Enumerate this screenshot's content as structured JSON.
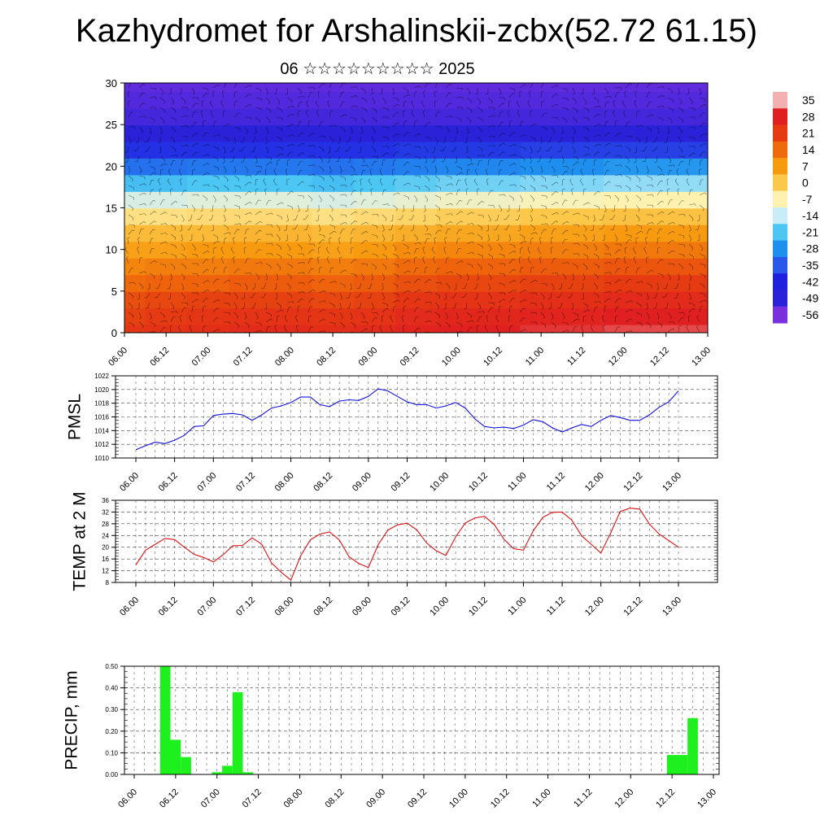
{
  "title": "Kazhydromet for Arshalinskii-zcbx(52.72 61.15)",
  "subtitle": "06 ☆☆☆☆☆☆☆☆☆ 2025",
  "x_ticks": [
    "06.00",
    "06.12",
    "07.00",
    "07.12",
    "08.00",
    "08.12",
    "09.00",
    "09.12",
    "10.00",
    "10.12",
    "11.00",
    "11.12",
    "12.00",
    "12.12",
    "13.00"
  ],
  "colorbar": {
    "labels": [
      "35",
      "28",
      "21",
      "14",
      "7",
      "0",
      "-7",
      "-14",
      "-21",
      "-28",
      "-35",
      "-42",
      "-49",
      "-56"
    ],
    "colors": [
      "#f2b0b0",
      "#e02020",
      "#e53a12",
      "#ef6a0a",
      "#f79a10",
      "#fcc84a",
      "#fff2b0",
      "#c9ecf9",
      "#4cc6f2",
      "#1f8fef",
      "#2a58ea",
      "#2020e0",
      "#2a22d8",
      "#7a30e0"
    ]
  },
  "chart_data": [
    {
      "type": "heatmap",
      "title": "",
      "ylim": [
        0,
        30
      ],
      "y_ticks": [
        0,
        5,
        10,
        15,
        20,
        25,
        30
      ],
      "x_categories": [
        "06.00",
        "06.12",
        "07.00",
        "07.12",
        "08.00",
        "08.12",
        "09.00",
        "09.12",
        "10.00",
        "10.12",
        "11.00",
        "11.12",
        "12.00",
        "12.12",
        "13.00"
      ],
      "y_levels": [
        0,
        2,
        4,
        6,
        8,
        10,
        12,
        14,
        16,
        18,
        20,
        22,
        24,
        26,
        28,
        30
      ],
      "values": [
        [
          22,
          23,
          24,
          25,
          25,
          24,
          25,
          27,
          28,
          28,
          29,
          29,
          30,
          30,
          30
        ],
        [
          20,
          21,
          22,
          23,
          23,
          22,
          23,
          25,
          26,
          26,
          27,
          27,
          28,
          28,
          28
        ],
        [
          18,
          19,
          20,
          20,
          20,
          19,
          20,
          22,
          23,
          23,
          24,
          24,
          25,
          25,
          25
        ],
        [
          14,
          15,
          15,
          16,
          16,
          15,
          16,
          18,
          19,
          19,
          20,
          20,
          21,
          21,
          21
        ],
        [
          10,
          11,
          11,
          12,
          12,
          11,
          12,
          14,
          15,
          15,
          16,
          16,
          17,
          17,
          17
        ],
        [
          6,
          6,
          7,
          7,
          7,
          6,
          7,
          9,
          10,
          10,
          11,
          11,
          12,
          12,
          12
        ],
        [
          2,
          2,
          2,
          3,
          3,
          2,
          3,
          4,
          5,
          5,
          6,
          6,
          7,
          7,
          7
        ],
        [
          -4,
          -4,
          -3,
          -3,
          -3,
          -4,
          -3,
          -2,
          -1,
          -1,
          0,
          0,
          1,
          1,
          1
        ],
        [
          -12,
          -12,
          -11,
          -11,
          -11,
          -12,
          -11,
          -10,
          -9,
          -9,
          -8,
          -8,
          -7,
          -7,
          -7
        ],
        [
          -22,
          -22,
          -21,
          -21,
          -21,
          -22,
          -21,
          -20,
          -19,
          -19,
          -18,
          -18,
          -17,
          -17,
          -17
        ],
        [
          -32,
          -32,
          -31,
          -31,
          -31,
          -32,
          -31,
          -30,
          -29,
          -29,
          -28,
          -28,
          -27,
          -27,
          -27
        ],
        [
          -40,
          -40,
          -40,
          -40,
          -40,
          -40,
          -40,
          -39,
          -39,
          -39,
          -38,
          -38,
          -38,
          -38,
          -38
        ],
        [
          -50,
          -50,
          -50,
          -50,
          -50,
          -50,
          -50,
          -50,
          -50,
          -50,
          -50,
          -50,
          -50,
          -50,
          -50
        ],
        [
          -52,
          -52,
          -52,
          -52,
          -52,
          -52,
          -52,
          -52,
          -52,
          -52,
          -52,
          -52,
          -52,
          -52,
          -52
        ],
        [
          -53,
          -53,
          -53,
          -53,
          -53,
          -53,
          -53,
          -53,
          -53,
          -53,
          -53,
          -53,
          -53,
          -53,
          -53
        ],
        [
          -54,
          -54,
          -54,
          -54,
          -54,
          -54,
          -54,
          -54,
          -54,
          -54,
          -54,
          -54,
          -54,
          -54,
          -54
        ]
      ]
    },
    {
      "type": "line",
      "ylabel": "PMSL",
      "ylim": [
        1010,
        1022
      ],
      "y_ticks": [
        1010,
        1012,
        1014,
        1016,
        1018,
        1020,
        1022
      ],
      "series": [
        {
          "color": "#1010e0",
          "values": [
            1011.2,
            1011.8,
            1012.3,
            1012.1,
            1012.6,
            1013.3,
            1014.6,
            1014.7,
            1016.2,
            1016.4,
            1016.5,
            1016.3,
            1015.5,
            1016.3,
            1017.3,
            1017.6,
            1018.1,
            1018.9,
            1018.9,
            1017.8,
            1017.5,
            1018.3,
            1018.5,
            1018.4,
            1019.0,
            1020.1,
            1019.8,
            1019.0,
            1018.2,
            1017.8,
            1017.8,
            1017.3,
            1017.6,
            1018.1,
            1017.3,
            1015.7,
            1014.6,
            1014.4,
            1014.5,
            1014.3,
            1014.8,
            1015.6,
            1015.3,
            1014.4,
            1013.8,
            1014.4,
            1014.9,
            1014.6,
            1015.5,
            1016.2,
            1015.9,
            1015.5,
            1015.5,
            1016.3,
            1017.4,
            1018.2,
            1019.8
          ]
        }
      ]
    },
    {
      "type": "line",
      "ylabel": "TEMP at 2 M",
      "ylim": [
        8,
        36
      ],
      "y_ticks": [
        8,
        12,
        16,
        20,
        24,
        28,
        32,
        36
      ],
      "series": [
        {
          "color": "#e01010",
          "values": [
            14,
            19,
            21,
            23,
            22.6,
            20,
            17.6,
            16.5,
            15,
            17.4,
            20.5,
            20.6,
            23.2,
            21,
            14.6,
            11.5,
            8.8,
            17,
            22.5,
            24.5,
            25.2,
            22.5,
            16.8,
            14.5,
            13.1,
            20.8,
            25.8,
            27.6,
            28.2,
            25.9,
            21.5,
            18.8,
            17.2,
            23.5,
            28.3,
            30,
            30.5,
            27.7,
            22.7,
            19.5,
            19,
            25.5,
            30.2,
            31.9,
            32,
            29.2,
            23.9,
            21,
            18,
            24.8,
            32.2,
            33.3,
            33,
            27.9,
            24.5,
            22.3,
            20
          ]
        }
      ]
    },
    {
      "type": "bar",
      "ylabel": "PRECIP, mm",
      "ylim": [
        0,
        0.5
      ],
      "y_ticks": [
        "0.00",
        "0.10",
        "0.20",
        "0.30",
        "0.40",
        "0.50"
      ],
      "color": "#1ef01e",
      "values": [
        0,
        0,
        0,
        0.5,
        0.16,
        0.08,
        0,
        0,
        0.01,
        0.04,
        0.38,
        0.01,
        0,
        0,
        0,
        0,
        0,
        0,
        0,
        0,
        0,
        0,
        0,
        0,
        0,
        0,
        0,
        0,
        0,
        0,
        0,
        0,
        0,
        0,
        0,
        0,
        0,
        0,
        0,
        0,
        0,
        0,
        0,
        0,
        0,
        0,
        0,
        0,
        0,
        0,
        0,
        0,
        0.09,
        0.09,
        0.26,
        0,
        0
      ]
    }
  ]
}
